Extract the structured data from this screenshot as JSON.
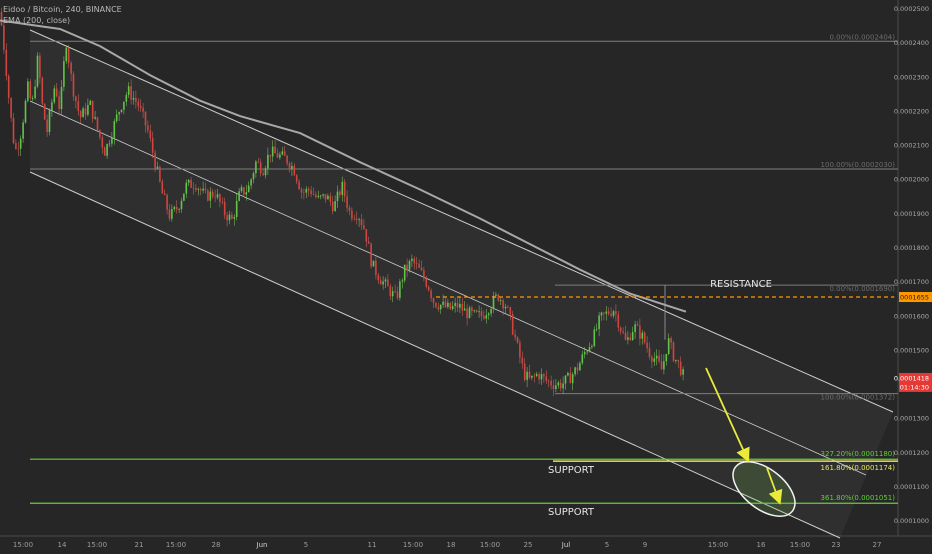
{
  "header": {
    "symbol_line": "Eidoo / Bitcoin, 240, BINANCE",
    "indicator_line": "EMA (200, close)"
  },
  "chart_data": {
    "type": "candlestick",
    "title": "Eidoo / Bitcoin, 240, BINANCE",
    "indicator": "EMA (200, close)",
    "x_ticks": [
      "15:00",
      "14",
      "15:00",
      "21",
      "15:00",
      "28",
      "Jun",
      "5",
      "11",
      "15:00",
      "18",
      "15:00",
      "25",
      "Jul",
      "5",
      "9",
      "15:00",
      "16",
      "15:00",
      "23",
      "27"
    ],
    "y_ticks": [
      "0.0002500",
      "0.0002400",
      "0.0002300",
      "0.0002200",
      "0.0002100",
      "0.0002000",
      "0.0001900",
      "0.0001800",
      "0.0001700",
      "0.0001600",
      "0.0001500",
      "0.0001300",
      "0.0001200",
      "0.0001100",
      "0.0001000"
    ],
    "ylim": [
      9.55e-05,
      0.0002525
    ],
    "grid": false,
    "price_labels": {
      "resistance_price": "0.0001655",
      "last_price": "0.0001418",
      "countdown": "01:14:30"
    },
    "fib_levels_upper": [
      {
        "label": "0.00%(0.0002404)",
        "value": 0.0002404
      },
      {
        "label": "100.00%(0.0002030)",
        "value": 0.000203
      }
    ],
    "fib_levels_lower": [
      {
        "label": "0.00%(0.0001690)",
        "value": 0.000169
      },
      {
        "label": "100.00%(0.0001372)",
        "value": 0.0001372
      }
    ],
    "support_levels": [
      {
        "pct_label": "327.20%(0.0001180)",
        "value": 0.000118,
        "color": "#5fd136"
      },
      {
        "pct_label": "161.80%(0.0001174)",
        "value": 0.0001174,
        "color": "#e8e85a"
      },
      {
        "pct_label": "361.80%(0.0001051)",
        "value": 0.0001051,
        "color": "#5fd136"
      }
    ],
    "annotations": {
      "resistance": "RESISTANCE",
      "support_upper": "SUPPORT",
      "support_lower": "SUPPORT"
    },
    "price_path": [
      [
        0,
        0.000249
      ],
      [
        5,
        0.000236
      ],
      [
        10,
        0.00022
      ],
      [
        15,
        0.000208
      ],
      [
        20,
        0.000212
      ],
      [
        28,
        0.000227
      ],
      [
        32,
        0.000221
      ],
      [
        38,
        0.000236
      ],
      [
        42,
        0.000222
      ],
      [
        47,
        0.000214
      ],
      [
        55,
        0.000228
      ],
      [
        60,
        0.00022
      ],
      [
        66,
        0.000241
      ],
      [
        72,
        0.000228
      ],
      [
        80,
        0.000218
      ],
      [
        90,
        0.000222
      ],
      [
        98,
        0.000214
      ],
      [
        105,
        0.000208
      ],
      [
        113,
        0.000215
      ],
      [
        120,
        0.000221
      ],
      [
        128,
        0.000226
      ],
      [
        138,
        0.000222
      ],
      [
        148,
        0.000214
      ],
      [
        155,
        0.000205
      ],
      [
        162,
        0.000196
      ],
      [
        170,
        0.000189
      ],
      [
        178,
        0.000192
      ],
      [
        186,
        0.000198
      ],
      [
        195,
        0.000199
      ],
      [
        205,
        0.000195
      ],
      [
        215,
        0.000196
      ],
      [
        225,
        0.00019
      ],
      [
        232,
        0.000188
      ],
      [
        240,
        0.000196
      ],
      [
        248,
        0.000197
      ],
      [
        256,
        0.000205
      ],
      [
        263,
        0.000203
      ],
      [
        270,
        0.000208
      ],
      [
        278,
        0.000207
      ],
      [
        286,
        0.000206
      ],
      [
        294,
        0.000203
      ],
      [
        302,
        0.000196
      ],
      [
        310,
        0.000197
      ],
      [
        318,
        0.000194
      ],
      [
        326,
        0.000195
      ],
      [
        334,
        0.000192
      ],
      [
        342,
        0.000198
      ],
      [
        350,
        0.00019
      ],
      [
        358,
        0.00019
      ],
      [
        365,
        0.000185
      ],
      [
        372,
        0.000175
      ],
      [
        380,
        0.000171
      ],
      [
        388,
        0.000168
      ],
      [
        396,
        0.000165
      ],
      [
        404,
        0.000173
      ],
      [
        412,
        0.000176
      ],
      [
        420,
        0.000173
      ],
      [
        428,
        0.000169
      ],
      [
        434,
        0.000164
      ],
      [
        442,
        0.000163
      ],
      [
        450,
        0.000162
      ],
      [
        458,
        0.000163
      ],
      [
        466,
        0.000161
      ],
      [
        474,
        0.00016
      ],
      [
        482,
        0.00016
      ],
      [
        490,
        0.000163
      ],
      [
        498,
        0.000166
      ],
      [
        506,
        0.000163
      ],
      [
        512,
        0.000157
      ],
      [
        518,
        0.00015
      ],
      [
        524,
        0.000143
      ],
      [
        530,
        0.000141
      ],
      [
        538,
        0.000143
      ],
      [
        546,
        0.000141
      ],
      [
        554,
        0.00014
      ],
      [
        562,
        0.00014
      ],
      [
        570,
        0.000142
      ],
      [
        578,
        0.000145
      ],
      [
        586,
        0.00015
      ],
      [
        594,
        0.000154
      ],
      [
        600,
        0.000159
      ],
      [
        608,
        0.000161
      ],
      [
        614,
        0.000162
      ],
      [
        620,
        0.000157
      ],
      [
        626,
        0.000152
      ],
      [
        634,
        0.000157
      ],
      [
        642,
        0.000154
      ],
      [
        650,
        0.000149
      ],
      [
        656,
        0.000147
      ],
      [
        662,
        0.000144
      ],
      [
        668,
        0.000153
      ],
      [
        674,
        0.000148
      ],
      [
        680,
        0.000145
      ],
      [
        684,
        0.0001418
      ]
    ]
  }
}
